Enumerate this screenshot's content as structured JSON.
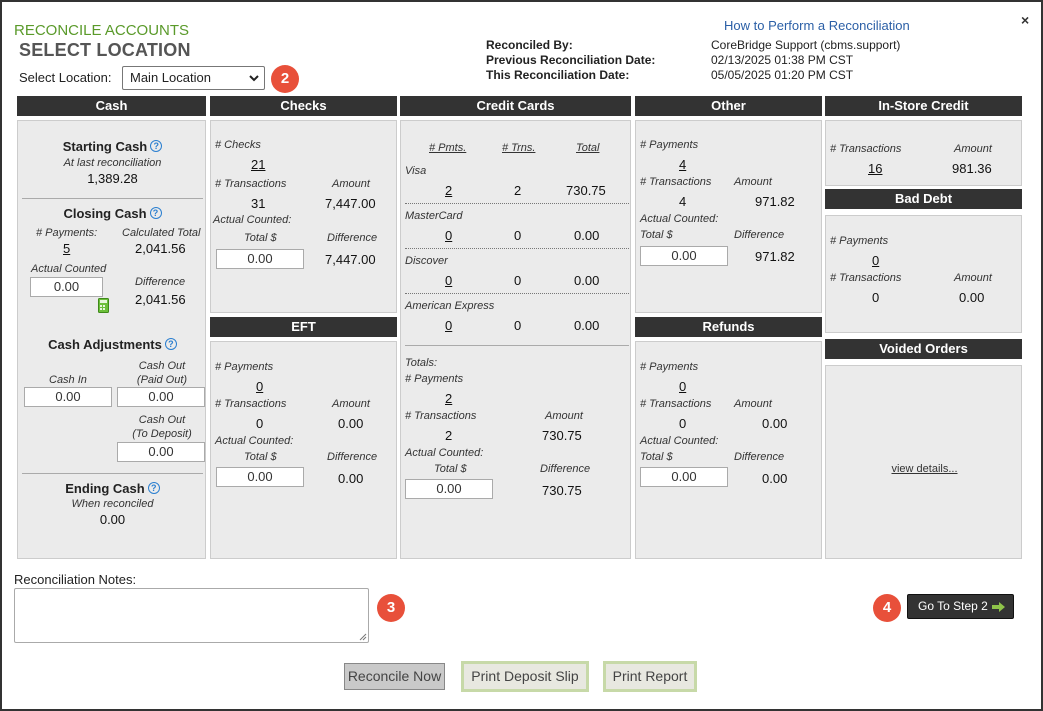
{
  "header": {
    "subtitle": "RECONCILE ACCOUNTS",
    "title": "SELECT LOCATION",
    "select_location_label": "Select Location:",
    "location_value": "Main Location",
    "help_link": "How to Perform a Reconciliation",
    "close": "×",
    "reconciled_by_label": "Reconciled By:",
    "reconciled_by": "CoreBridge Support (cbms.support)",
    "prev_date_label": "Previous Reconciliation Date:",
    "prev_date": "02/13/2025 01:38 PM CST",
    "this_date_label": "This Reconciliation Date:",
    "this_date": "05/05/2025 01:20 PM CST"
  },
  "badges": {
    "b2": "2",
    "b3": "3",
    "b4": "4"
  },
  "cash": {
    "header": "Cash",
    "starting_title": "Starting Cash",
    "starting_sub": "At last reconciliation",
    "starting_value": "1,389.28",
    "closing_title": "Closing Cash",
    "payments_label": "# Payments:",
    "payments_value": "5",
    "calc_total_label": "Calculated Total",
    "calc_total_value": "2,041.56",
    "actual_label": "Actual Counted",
    "actual_value": "0.00",
    "difference_label": "Difference",
    "difference_value": "2,041.56",
    "adj_title": "Cash Adjustments",
    "cash_in_label": "Cash In",
    "cash_in_value": "0.00",
    "cash_out_paid_label1": "Cash Out",
    "cash_out_paid_label2": "(Paid Out)",
    "cash_out_paid_value": "0.00",
    "cash_out_dep_label1": "Cash Out",
    "cash_out_dep_label2": "(To Deposit)",
    "cash_out_dep_value": "0.00",
    "ending_title": "Ending Cash",
    "ending_sub": "When reconciled",
    "ending_value": "0.00"
  },
  "checks": {
    "header": "Checks",
    "num_checks_label": "# Checks",
    "num_checks_value": "21",
    "trans_label": "# Transactions",
    "amount_label": "Amount",
    "trans_value": "31",
    "amount_value": "7,447.00",
    "actual_label": "Actual Counted:",
    "total_label": "Total $",
    "difference_label": "Difference",
    "total_value": "0.00",
    "difference_value": "7,447.00"
  },
  "eft": {
    "header": "EFT",
    "payments_label": "# Payments",
    "payments_value": "0",
    "trans_label": "# Transactions",
    "amount_label": "Amount",
    "trans_value": "0",
    "amount_value": "0.00",
    "actual_label": "Actual Counted:",
    "total_label": "Total $",
    "difference_label": "Difference",
    "total_value": "0.00",
    "difference_value": "0.00"
  },
  "credit": {
    "header": "Credit Cards",
    "col_pmts": "# Pmts.",
    "col_trns": "# Trns.",
    "col_total": "Total",
    "cards": [
      {
        "name": "Visa",
        "pmts": "2",
        "trns": "2",
        "total": "730.75"
      },
      {
        "name": "MasterCard",
        "pmts": "0",
        "trns": "0",
        "total": "0.00"
      },
      {
        "name": "Discover",
        "pmts": "0",
        "trns": "0",
        "total": "0.00"
      },
      {
        "name": "American Express",
        "pmts": "0",
        "trns": "0",
        "total": "0.00"
      }
    ],
    "totals_label": "Totals:",
    "payments_label": "# Payments",
    "payments_value": "2",
    "trans_label": "# Transactions",
    "amount_label": "Amount",
    "trans_value": "2",
    "amount_value": "730.75",
    "actual_label": "Actual Counted:",
    "total_label": "Total $",
    "difference_label": "Difference",
    "total_value": "0.00",
    "difference_value": "730.75"
  },
  "other": {
    "header": "Other",
    "payments_label": "# Payments",
    "payments_value": "4",
    "trans_label": "# Transactions",
    "amount_label": "Amount",
    "trans_value": "4",
    "amount_value": "971.82",
    "actual_label": "Actual Counted:",
    "total_label": "Total $",
    "difference_label": "Difference",
    "total_value": "0.00",
    "difference_value": "971.82"
  },
  "refunds": {
    "header": "Refunds",
    "payments_label": "# Payments",
    "payments_value": "0",
    "trans_label": "# Transactions",
    "amount_label": "Amount",
    "trans_value": "0",
    "amount_value": "0.00",
    "actual_label": "Actual Counted:",
    "total_label": "Total $",
    "difference_label": "Difference",
    "total_value": "0.00",
    "difference_value": "0.00"
  },
  "instore": {
    "header": "In-Store Credit",
    "trans_label": "# Transactions",
    "amount_label": "Amount",
    "trans_value": "16",
    "amount_value": "981.36"
  },
  "baddebt": {
    "header": "Bad Debt",
    "payments_label": "# Payments",
    "payments_value": "0",
    "trans_label": "# Transactions",
    "amount_label": "Amount",
    "trans_value": "0",
    "amount_value": "0.00"
  },
  "voided": {
    "header": "Voided Orders",
    "details_link": "view details..."
  },
  "notes": {
    "label": "Reconciliation Notes:",
    "value": ""
  },
  "buttons": {
    "step2": "Go To Step 2",
    "reconcile": "Reconcile Now",
    "deposit": "Print Deposit Slip",
    "report": "Print Report"
  },
  "colors": {
    "header_bg": "#333333",
    "accent_green": "#5a9a2a",
    "badge": "#e8503a",
    "link": "#2b5fa6"
  }
}
